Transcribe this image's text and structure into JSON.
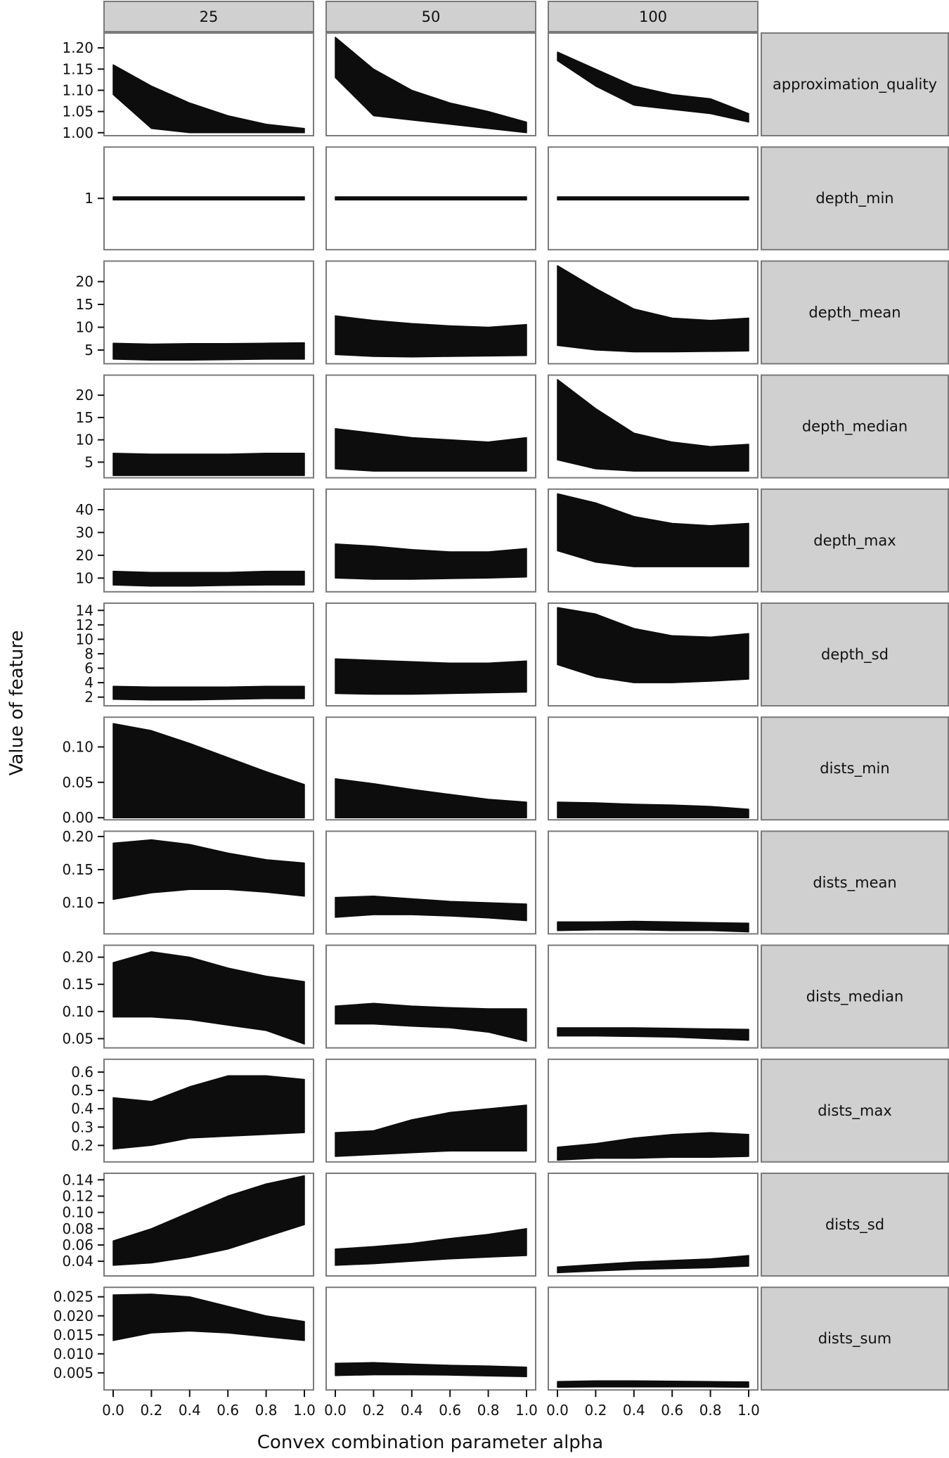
{
  "chart_data": {
    "type": "line",
    "xlabel": "Convex combination parameter alpha",
    "ylabel": "Value of feature",
    "x": [
      0.0,
      0.2,
      0.4,
      0.6,
      0.8,
      1.0
    ],
    "x_ticks": [
      "0.0",
      "0.2",
      "0.4",
      "0.6",
      "0.8",
      "1.0"
    ],
    "columns": [
      "25",
      "50",
      "100"
    ],
    "fill_color": "#0d0d0d",
    "strip_color": "#d0d0d0",
    "grid": false,
    "rows": [
      {
        "feature": "approximation_quality",
        "ylim": [
          0.993,
          1.235
        ],
        "ticks": [
          1.0,
          1.05,
          1.1,
          1.15,
          1.2
        ],
        "tick_labels": [
          "1.00",
          "1.05",
          "1.10",
          "1.15",
          "1.20"
        ],
        "panels": [
          {
            "upper": [
              1.16,
              1.11,
              1.07,
              1.04,
              1.02,
              1.01
            ],
            "lower": [
              1.09,
              1.01,
              1.0,
              1.0,
              1.0,
              1.0
            ]
          },
          {
            "upper": [
              1.225,
              1.15,
              1.1,
              1.07,
              1.05,
              1.025
            ],
            "lower": [
              1.13,
              1.04,
              1.03,
              1.02,
              1.01,
              1.0
            ]
          },
          {
            "upper": [
              1.19,
              1.15,
              1.11,
              1.09,
              1.08,
              1.045
            ],
            "lower": [
              1.17,
              1.11,
              1.065,
              1.055,
              1.045,
              1.025
            ]
          }
        ]
      },
      {
        "feature": "depth_min",
        "ylim": [
          0.6,
          1.4
        ],
        "ticks": [
          1
        ],
        "tick_labels": [
          "1"
        ],
        "panels": [
          {
            "upper": [
              1.012,
              1.012,
              1.012,
              1.012,
              1.012,
              1.012
            ],
            "lower": [
              0.988,
              0.988,
              0.988,
              0.988,
              0.988,
              0.988
            ]
          },
          {
            "upper": [
              1.012,
              1.012,
              1.012,
              1.012,
              1.012,
              1.012
            ],
            "lower": [
              0.988,
              0.988,
              0.988,
              0.988,
              0.988,
              0.988
            ]
          },
          {
            "upper": [
              1.012,
              1.012,
              1.012,
              1.012,
              1.012,
              1.012
            ],
            "lower": [
              0.988,
              0.988,
              0.988,
              0.988,
              0.988,
              0.988
            ]
          }
        ]
      },
      {
        "feature": "depth_mean",
        "ylim": [
          2,
          24.5
        ],
        "ticks": [
          5,
          10,
          15,
          20
        ],
        "tick_labels": [
          "5",
          "10",
          "15",
          "20"
        ],
        "panels": [
          {
            "upper": [
              6.5,
              6.3,
              6.4,
              6.4,
              6.5,
              6.6
            ],
            "lower": [
              3.0,
              2.8,
              2.8,
              2.9,
              3.0,
              3.0
            ]
          },
          {
            "upper": [
              12.5,
              11.5,
              10.8,
              10.3,
              10.0,
              10.6
            ],
            "lower": [
              4.0,
              3.6,
              3.5,
              3.6,
              3.7,
              3.8
            ]
          },
          {
            "upper": [
              23.5,
              18.5,
              14.0,
              12.0,
              11.5,
              12.0
            ],
            "lower": [
              6.0,
              5.0,
              4.6,
              4.6,
              4.7,
              4.8
            ]
          }
        ]
      },
      {
        "feature": "depth_median",
        "ylim": [
          1.5,
          24.5
        ],
        "ticks": [
          5,
          10,
          15,
          20
        ],
        "tick_labels": [
          "5",
          "10",
          "15",
          "20"
        ],
        "panels": [
          {
            "upper": [
              7.0,
              6.8,
              6.8,
              6.8,
              7.0,
              7.0
            ],
            "lower": [
              2.0,
              2.0,
              2.0,
              2.0,
              2.0,
              2.0
            ]
          },
          {
            "upper": [
              12.5,
              11.5,
              10.5,
              10.0,
              9.5,
              10.5
            ],
            "lower": [
              3.5,
              3.0,
              3.0,
              3.0,
              3.0,
              3.0
            ]
          },
          {
            "upper": [
              23.5,
              17.0,
              11.5,
              9.5,
              8.5,
              9.0
            ],
            "lower": [
              5.5,
              3.5,
              3.0,
              3.0,
              3.0,
              3.0
            ]
          }
        ]
      },
      {
        "feature": "depth_max",
        "ylim": [
          4,
          49
        ],
        "ticks": [
          10,
          20,
          30,
          40
        ],
        "tick_labels": [
          "10",
          "20",
          "30",
          "40"
        ],
        "panels": [
          {
            "upper": [
              13.0,
              12.5,
              12.5,
              12.5,
              13.0,
              13.0
            ],
            "lower": [
              7.0,
              6.5,
              6.5,
              6.8,
              7.0,
              7.0
            ]
          },
          {
            "upper": [
              25.0,
              24.0,
              22.5,
              21.5,
              21.5,
              23.0
            ],
            "lower": [
              10.0,
              9.5,
              9.5,
              9.8,
              10.0,
              10.5
            ]
          },
          {
            "upper": [
              47.0,
              43.0,
              37.0,
              34.0,
              33.0,
              34.0
            ],
            "lower": [
              22.0,
              17.0,
              15.0,
              15.0,
              15.0,
              15.0
            ]
          }
        ]
      },
      {
        "feature": "depth_sd",
        "ylim": [
          0.8,
          15.0
        ],
        "ticks": [
          2,
          4,
          6,
          8,
          10,
          12,
          14
        ],
        "tick_labels": [
          "2",
          "4",
          "6",
          "8",
          "10",
          "12",
          "14"
        ],
        "panels": [
          {
            "upper": [
              3.5,
              3.4,
              3.4,
              3.4,
              3.5,
              3.5
            ],
            "lower": [
              1.7,
              1.6,
              1.6,
              1.7,
              1.8,
              1.8
            ]
          },
          {
            "upper": [
              7.3,
              7.1,
              6.9,
              6.7,
              6.7,
              7.0
            ],
            "lower": [
              2.5,
              2.4,
              2.4,
              2.5,
              2.6,
              2.7
            ]
          },
          {
            "upper": [
              14.4,
              13.5,
              11.5,
              10.5,
              10.3,
              10.8
            ],
            "lower": [
              6.5,
              4.8,
              4.0,
              4.0,
              4.2,
              4.5
            ]
          }
        ]
      },
      {
        "feature": "dists_min",
        "ylim": [
          -0.003,
          0.142
        ],
        "ticks": [
          0.0,
          0.05,
          0.1
        ],
        "tick_labels": [
          "0.00",
          "0.05",
          "0.10"
        ],
        "panels": [
          {
            "upper": [
              0.133,
              0.123,
              0.105,
              0.085,
              0.065,
              0.047
            ],
            "lower": [
              0.0,
              0.0,
              0.0,
              0.0,
              0.0,
              0.0
            ]
          },
          {
            "upper": [
              0.055,
              0.048,
              0.04,
              0.033,
              0.026,
              0.022
            ],
            "lower": [
              0.0,
              0.0,
              0.0,
              0.0,
              0.0,
              0.0
            ]
          },
          {
            "upper": [
              0.022,
              0.021,
              0.019,
              0.018,
              0.016,
              0.012
            ],
            "lower": [
              0.0,
              0.0,
              0.0,
              0.0,
              0.0,
              0.0
            ]
          }
        ]
      },
      {
        "feature": "dists_mean",
        "ylim": [
          0.053,
          0.208
        ],
        "ticks": [
          0.1,
          0.15,
          0.2
        ],
        "tick_labels": [
          "0.10",
          "0.15",
          "0.20"
        ],
        "panels": [
          {
            "upper": [
              0.19,
              0.195,
              0.188,
              0.175,
              0.165,
              0.16
            ],
            "lower": [
              0.105,
              0.115,
              0.12,
              0.12,
              0.116,
              0.11
            ]
          },
          {
            "upper": [
              0.108,
              0.11,
              0.106,
              0.102,
              0.1,
              0.098
            ],
            "lower": [
              0.078,
              0.082,
              0.082,
              0.08,
              0.077,
              0.073
            ]
          },
          {
            "upper": [
              0.071,
              0.071,
              0.072,
              0.071,
              0.07,
              0.069
            ],
            "lower": [
              0.058,
              0.059,
              0.059,
              0.058,
              0.058,
              0.056
            ]
          }
        ]
      },
      {
        "feature": "dists_median",
        "ylim": [
          0.033,
          0.222
        ],
        "ticks": [
          0.05,
          0.1,
          0.15,
          0.2
        ],
        "tick_labels": [
          "0.05",
          "0.10",
          "0.15",
          "0.20"
        ],
        "panels": [
          {
            "upper": [
              0.19,
              0.21,
              0.2,
              0.18,
              0.165,
              0.155
            ],
            "lower": [
              0.09,
              0.09,
              0.085,
              0.075,
              0.065,
              0.04
            ]
          },
          {
            "upper": [
              0.11,
              0.115,
              0.11,
              0.107,
              0.105,
              0.105
            ],
            "lower": [
              0.077,
              0.077,
              0.073,
              0.07,
              0.062,
              0.045
            ]
          },
          {
            "upper": [
              0.07,
              0.07,
              0.07,
              0.069,
              0.068,
              0.067
            ],
            "lower": [
              0.055,
              0.055,
              0.054,
              0.053,
              0.05,
              0.047
            ]
          }
        ]
      },
      {
        "feature": "dists_max",
        "ylim": [
          0.11,
          0.67
        ],
        "ticks": [
          0.2,
          0.3,
          0.4,
          0.5,
          0.6
        ],
        "tick_labels": [
          "0.2",
          "0.3",
          "0.4",
          "0.5",
          "0.6"
        ],
        "panels": [
          {
            "upper": [
              0.46,
              0.44,
              0.52,
              0.58,
              0.58,
              0.56
            ],
            "lower": [
              0.18,
              0.2,
              0.24,
              0.25,
              0.26,
              0.27
            ]
          },
          {
            "upper": [
              0.27,
              0.28,
              0.34,
              0.38,
              0.4,
              0.42
            ],
            "lower": [
              0.14,
              0.15,
              0.16,
              0.17,
              0.17,
              0.17
            ]
          },
          {
            "upper": [
              0.19,
              0.21,
              0.24,
              0.26,
              0.27,
              0.26
            ],
            "lower": [
              0.12,
              0.13,
              0.13,
              0.135,
              0.135,
              0.14
            ]
          }
        ]
      },
      {
        "feature": "dists_sd",
        "ylim": [
          0.022,
          0.148
        ],
        "ticks": [
          0.04,
          0.06,
          0.08,
          0.1,
          0.12,
          0.14
        ],
        "tick_labels": [
          "0.04",
          "0.06",
          "0.08",
          "0.10",
          "0.12",
          "0.14"
        ],
        "panels": [
          {
            "upper": [
              0.065,
              0.08,
              0.1,
              0.12,
              0.135,
              0.145
            ],
            "lower": [
              0.035,
              0.038,
              0.045,
              0.055,
              0.07,
              0.085
            ]
          },
          {
            "upper": [
              0.055,
              0.058,
              0.062,
              0.068,
              0.073,
              0.08
            ],
            "lower": [
              0.035,
              0.037,
              0.04,
              0.043,
              0.045,
              0.047
            ]
          },
          {
            "upper": [
              0.033,
              0.036,
              0.039,
              0.041,
              0.043,
              0.047
            ],
            "lower": [
              0.026,
              0.028,
              0.03,
              0.031,
              0.032,
              0.034
            ]
          }
        ]
      },
      {
        "feature": "dists_sum",
        "ylim": [
          0.0005,
          0.0275
        ],
        "ticks": [
          0.005,
          0.01,
          0.015,
          0.02,
          0.025
        ],
        "tick_labels": [
          "0.005",
          "0.010",
          "0.015",
          "0.020",
          "0.025"
        ],
        "panels": [
          {
            "upper": [
              0.0255,
              0.0257,
              0.025,
              0.0225,
              0.02,
              0.0185
            ],
            "lower": [
              0.0135,
              0.0155,
              0.016,
              0.0155,
              0.0145,
              0.0135
            ]
          },
          {
            "upper": [
              0.0075,
              0.0077,
              0.0073,
              0.007,
              0.0068,
              0.0065
            ],
            "lower": [
              0.0043,
              0.0045,
              0.0045,
              0.0044,
              0.0042,
              0.004
            ]
          },
          {
            "upper": [
              0.0027,
              0.0029,
              0.0029,
              0.0028,
              0.0027,
              0.0026
            ],
            "lower": [
              0.0012,
              0.0013,
              0.0013,
              0.0013,
              0.0013,
              0.0012
            ]
          }
        ]
      }
    ]
  }
}
